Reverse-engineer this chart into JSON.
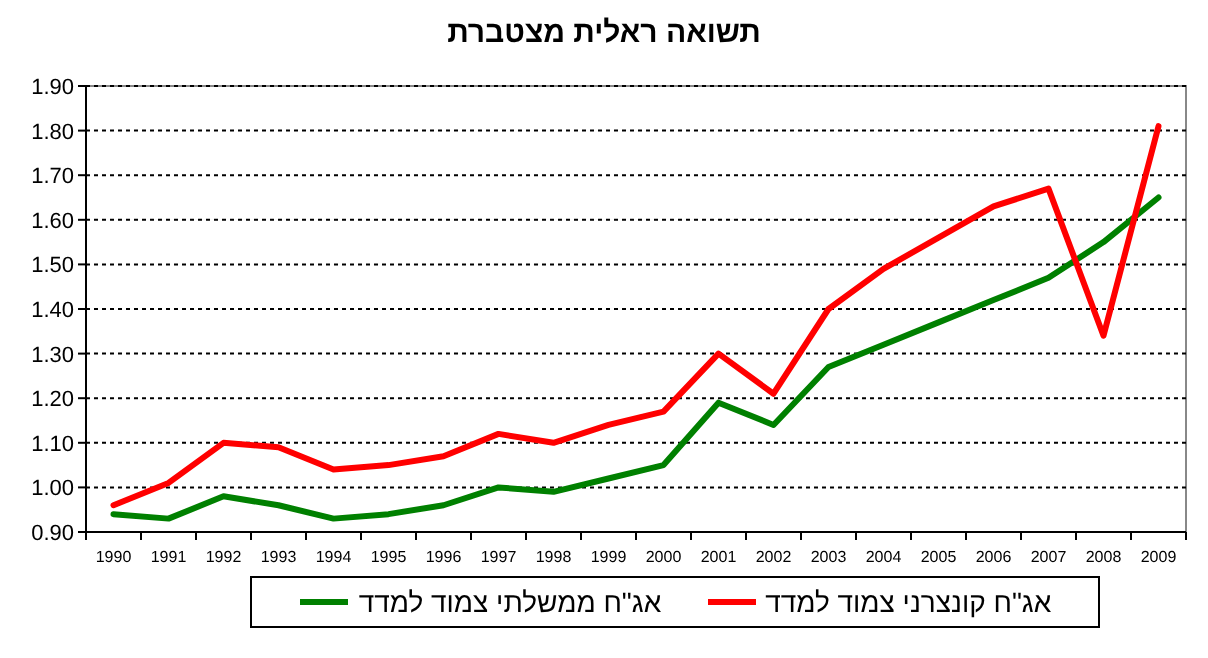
{
  "chart_data": {
    "type": "line",
    "title": "תשואה ראלית מצטברת",
    "categories": [
      "1990",
      "1991",
      "1992",
      "1993",
      "1994",
      "1995",
      "1996",
      "1997",
      "1998",
      "1999",
      "2000",
      "2001",
      "2002",
      "2003",
      "2004",
      "2005",
      "2006",
      "2007",
      "2008",
      "2009"
    ],
    "series": [
      {
        "name": "אג\"ח ממשלתי צמוד למדד",
        "color": "#008000",
        "values": [
          0.94,
          0.93,
          0.98,
          0.96,
          0.93,
          0.94,
          0.96,
          1.0,
          0.99,
          1.02,
          1.05,
          1.19,
          1.14,
          1.27,
          1.32,
          1.37,
          1.42,
          1.47,
          1.55,
          1.65
        ]
      },
      {
        "name": "אג\"ח קונצרני צמוד למדד",
        "color": "#ff0000",
        "values": [
          0.96,
          1.01,
          1.1,
          1.09,
          1.04,
          1.05,
          1.07,
          1.12,
          1.1,
          1.14,
          1.17,
          1.3,
          1.21,
          1.4,
          1.49,
          1.56,
          1.63,
          1.67,
          1.34,
          1.81
        ]
      }
    ],
    "ylim": [
      0.9,
      1.9
    ],
    "yticks": [
      {
        "value": 0.9,
        "label": "0.90"
      },
      {
        "value": 1.0,
        "label": "1.00"
      },
      {
        "value": 1.1,
        "label": "1.10"
      },
      {
        "value": 1.2,
        "label": "1.20"
      },
      {
        "value": 1.3,
        "label": "1.30"
      },
      {
        "value": 1.4,
        "label": "1.40"
      },
      {
        "value": 1.5,
        "label": "1.50"
      },
      {
        "value": 1.6,
        "label": "1.60"
      },
      {
        "value": 1.7,
        "label": "1.70"
      },
      {
        "value": 1.8,
        "label": "1.80"
      },
      {
        "value": 1.9,
        "label": "1.90"
      }
    ],
    "grid": "y",
    "legend": "bottom",
    "marker": "none",
    "line_style": "solid"
  }
}
